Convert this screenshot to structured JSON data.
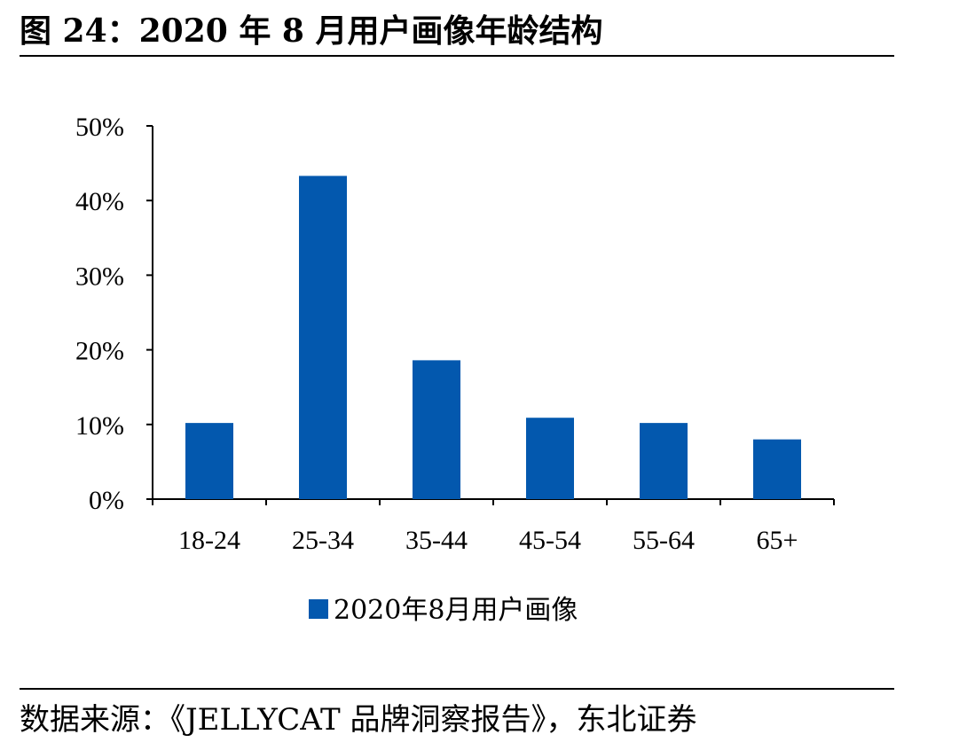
{
  "figure": {
    "title": "图 24：2020 年 8 月用户画像年龄结构",
    "source": "数据来源：《JELLYCAT 品牌洞察报告》，东北证券"
  },
  "chart_data": {
    "type": "bar",
    "categories": [
      "18-24",
      "25-34",
      "35-44",
      "45-54",
      "55-64",
      "65+"
    ],
    "series": [
      {
        "name": "2020年8月用户画像",
        "values": [
          10.2,
          43.3,
          18.6,
          10.9,
          10.2,
          8.0
        ]
      }
    ],
    "y_ticks": [
      "0%",
      "10%",
      "20%",
      "30%",
      "40%",
      "50%"
    ],
    "ylim": [
      0,
      50
    ],
    "y_unit": "%",
    "grid": false,
    "legend_position": "bottom",
    "bar_color": "#0358AE"
  }
}
